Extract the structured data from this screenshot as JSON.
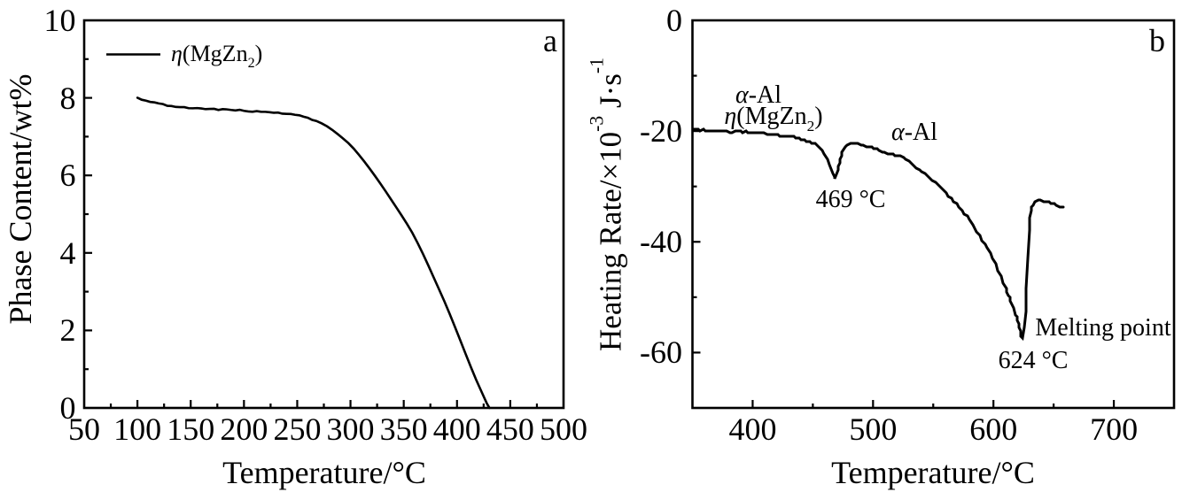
{
  "figure": {
    "background": "#ffffff",
    "ink_color": "#000000",
    "panel_letters": [
      "a",
      "b"
    ]
  },
  "chart_data": [
    {
      "type": "line",
      "panel": "a",
      "title": "",
      "xlabel": "Temperature/°C",
      "ylabel": "Phase Content/wt%",
      "xlim": [
        50,
        500
      ],
      "ylim": [
        0,
        10
      ],
      "xticks": [
        50,
        100,
        150,
        200,
        250,
        300,
        350,
        400,
        450,
        500
      ],
      "xticks_minor": [
        75,
        125,
        175,
        225,
        275,
        325,
        375,
        425,
        475
      ],
      "yticks": [
        0,
        2,
        4,
        6,
        8,
        10
      ],
      "yticks_minor": [
        1,
        3,
        5,
        7,
        9
      ],
      "grid": false,
      "legend": {
        "position": "top-left",
        "entries": [
          {
            "label": "η(MgZn₂)",
            "label_rich": [
              {
                "t": "η",
                "s": "i"
              },
              {
                "t": "(MgZn"
              },
              {
                "t": "2",
                "s": "sub"
              },
              {
                "t": ")"
              }
            ]
          }
        ]
      },
      "series": [
        {
          "name": "η(MgZn₂) phase content",
          "x": [
            100.0,
            104.0,
            108.0,
            112.0,
            116.0,
            120.0,
            124.0,
            128.0,
            132.0,
            136.0,
            140.0,
            144.0,
            148.0,
            152.0,
            156.0,
            160.0,
            164.0,
            168.0,
            172.0,
            176.0,
            180.0,
            184.0,
            188.0,
            192.0,
            196.0,
            200.0,
            204.0,
            208.0,
            212.0,
            216.0,
            220.0,
            224.0,
            228.0,
            232.0,
            236.0,
            240.0,
            244.0,
            248.0,
            252.0,
            256.0,
            260.0,
            264.0,
            268.0,
            273.0,
            278.0,
            283.0,
            288.0,
            293.0,
            298.0,
            303.0,
            308.0,
            313.0,
            318.0,
            323.0,
            328.0,
            333.0,
            338.0,
            343.0,
            348.0,
            353.0,
            358.0,
            363.0,
            368.0,
            373.0,
            378.0,
            383.0,
            388.0,
            393.0,
            398.0,
            403.0,
            408.0,
            413.0,
            418.0,
            423.0,
            428.0,
            430.5
          ],
          "y": [
            8.004,
            7.952,
            7.928,
            7.896,
            7.884,
            7.856,
            7.84,
            7.795,
            7.79,
            7.766,
            7.761,
            7.76,
            7.734,
            7.731,
            7.737,
            7.726,
            7.709,
            7.715,
            7.718,
            7.688,
            7.71,
            7.703,
            7.688,
            7.676,
            7.693,
            7.665,
            7.649,
            7.641,
            7.657,
            7.641,
            7.64,
            7.63,
            7.615,
            7.621,
            7.592,
            7.587,
            7.584,
            7.563,
            7.55,
            7.514,
            7.487,
            7.43,
            7.404,
            7.341,
            7.265,
            7.172,
            7.065,
            6.953,
            6.834,
            6.691,
            6.528,
            6.356,
            6.175,
            5.986,
            5.79,
            5.589,
            5.383,
            5.176,
            4.966,
            4.75,
            4.52,
            4.257,
            3.976,
            3.68,
            3.373,
            3.068,
            2.76,
            2.434,
            2.096,
            1.75,
            1.4,
            1.055,
            0.725,
            0.419,
            0.117,
            0.0
          ]
        }
      ]
    },
    {
      "type": "line",
      "panel": "b",
      "title": "",
      "xlabel": "Temperature/°C",
      "ylabel": "Heating Rate/×10⁻³ J·s⁻¹",
      "ylabel_rich": [
        {
          "t": "Heating Rate/×10"
        },
        {
          "t": "-3",
          "s": "sup"
        },
        {
          "t": " J·s"
        },
        {
          "t": "-1",
          "s": "sup"
        }
      ],
      "xlim": [
        350,
        750
      ],
      "ylim": [
        -70,
        0
      ],
      "xticks": [
        400,
        500,
        600,
        700
      ],
      "xticks_minor": [
        450,
        550,
        650
      ],
      "yticks": [
        0,
        -20,
        -40,
        -60
      ],
      "yticks_minor": [
        -10,
        -30,
        -50
      ],
      "grid": false,
      "annotations": [
        {
          "id": "alpha-al-1",
          "text": "α-Al",
          "rich": [
            {
              "t": "α",
              "s": "i"
            },
            {
              "t": "-Al"
            }
          ]
        },
        {
          "id": "eta-mgzn2",
          "text": "η(MgZn₂)",
          "rich": [
            {
              "t": "η",
              "s": "i"
            },
            {
              "t": "(MgZn"
            },
            {
              "t": "2",
              "s": "sub"
            },
            {
              "t": ")"
            }
          ]
        },
        {
          "id": "alpha-al-2",
          "text": "α-Al",
          "rich": [
            {
              "t": "α",
              "s": "i"
            },
            {
              "t": "-Al"
            }
          ]
        },
        {
          "id": "peak-1-temp",
          "text": "469 °C"
        },
        {
          "id": "peak-2-temp",
          "text": "624 °C"
        },
        {
          "id": "melting-point",
          "text": "Melting point"
        }
      ],
      "series": [
        {
          "name": "heating rate",
          "x": [
            350.0,
            352.2,
            354.4,
            356.6,
            358.8,
            361.0,
            363.2,
            365.4,
            367.6,
            369.8,
            372.0,
            374.2,
            376.4,
            378.6,
            380.8,
            383.0,
            385.2,
            387.4,
            389.6,
            391.8,
            394.0,
            396.2,
            398.4,
            400.6,
            402.8,
            405.0,
            407.2,
            409.4,
            411.6,
            413.8,
            416.0,
            418.2,
            420.4,
            422.6,
            424.8,
            427.0,
            429.2,
            431.4,
            433.6,
            435.8,
            438.0,
            440.2,
            442.4,
            444.6,
            446.8,
            449.0,
            451.2,
            453.4,
            455.6,
            457.8,
            460.0,
            462.2,
            464.4,
            466.6,
            467.4,
            468.2,
            470.4,
            471.2,
            472.0,
            472.8,
            473.6,
            474.4,
            476.6,
            478.8,
            481.0,
            483.2,
            485.4,
            487.6,
            489.8,
            492.0,
            494.2,
            496.4,
            498.6,
            500.8,
            503.0,
            505.2,
            507.4,
            509.6,
            511.8,
            514.0,
            516.2,
            518.4,
            520.6,
            522.8,
            525.0,
            527.2,
            529.4,
            531.6,
            533.8,
            536.0,
            538.2,
            540.4,
            542.6,
            544.8,
            547.0,
            549.2,
            551.4,
            553.6,
            555.8,
            558.0,
            560.2,
            562.4,
            564.6,
            566.8,
            569.0,
            571.2,
            573.4,
            575.6,
            577.8,
            580.0,
            582.2,
            584.4,
            586.6,
            588.8,
            591.0,
            593.2,
            595.4,
            597.6,
            599.8,
            602.0,
            604.2,
            606.4,
            608.6,
            610.8,
            611.6,
            612.4,
            613.2,
            614.0,
            616.2,
            618.4,
            619.2,
            620.0,
            620.8,
            621.6,
            622.4,
            623.2,
            624.0,
            626.2,
            627.0,
            627.8,
            628.6,
            629.4,
            630.2,
            631.0,
            631.8,
            632.6,
            634.8,
            637.0,
            639.2,
            641.4,
            643.6,
            645.8,
            648.0,
            650.2,
            652.4,
            654.6,
            656.8,
            658.5
          ],
          "y": [
            -19.64,
            -19.73,
            -19.67,
            -19.85,
            -19.79,
            -19.87,
            -19.97,
            -19.9,
            -20.04,
            -19.97,
            -20.07,
            -20.08,
            -20.03,
            -19.96,
            -20.14,
            -20.14,
            -20.07,
            -20.03,
            -20.13,
            -20.19,
            -20.08,
            -20.31,
            -20.16,
            -20.31,
            -20.38,
            -20.42,
            -20.42,
            -20.36,
            -20.54,
            -20.5,
            -20.53,
            -20.64,
            -20.66,
            -20.82,
            -20.87,
            -20.91,
            -20.87,
            -21.0,
            -21.09,
            -21.12,
            -21.28,
            -21.48,
            -21.57,
            -21.76,
            -22.01,
            -22.08,
            -22.32,
            -22.53,
            -22.88,
            -23.42,
            -24.05,
            -25.04,
            -26.02,
            -27.7,
            -28.43,
            -28.72,
            -26.95,
            -26.25,
            -25.63,
            -24.97,
            -24.34,
            -23.82,
            -22.9,
            -22.5,
            -22.29,
            -22.25,
            -22.21,
            -22.25,
            -22.45,
            -22.56,
            -22.83,
            -22.83,
            -22.99,
            -23.06,
            -23.24,
            -23.51,
            -23.66,
            -23.77,
            -24.05,
            -24.06,
            -24.23,
            -24.35,
            -24.51,
            -24.54,
            -24.88,
            -25.15,
            -25.46,
            -25.76,
            -26.23,
            -26.58,
            -26.96,
            -27.29,
            -27.64,
            -28.0,
            -28.45,
            -28.85,
            -29.29,
            -29.68,
            -30.11,
            -30.62,
            -31.11,
            -31.65,
            -32.2,
            -32.71,
            -33.23,
            -33.79,
            -34.35,
            -34.86,
            -35.46,
            -36.09,
            -36.76,
            -37.51,
            -38.27,
            -38.96,
            -39.65,
            -40.47,
            -41.21,
            -42.11,
            -43.07,
            -44.07,
            -45.11,
            -46.21,
            -47.36,
            -48.57,
            -49.06,
            -49.6,
            -50.13,
            -50.64,
            -51.83,
            -53.13,
            -53.63,
            -54.2,
            -54.84,
            -55.45,
            -56.11,
            -56.9,
            -57.49,
            -55.3,
            -52.66,
            -48.5,
            -43.0,
            -38.0,
            -35.51,
            -34.39,
            -33.73,
            -33.28,
            -32.67,
            -32.55,
            -32.49,
            -32.62,
            -32.61,
            -32.88,
            -33.08,
            -33.04,
            -33.3,
            -33.59,
            -33.72,
            -33.85
          ]
        }
      ]
    }
  ]
}
